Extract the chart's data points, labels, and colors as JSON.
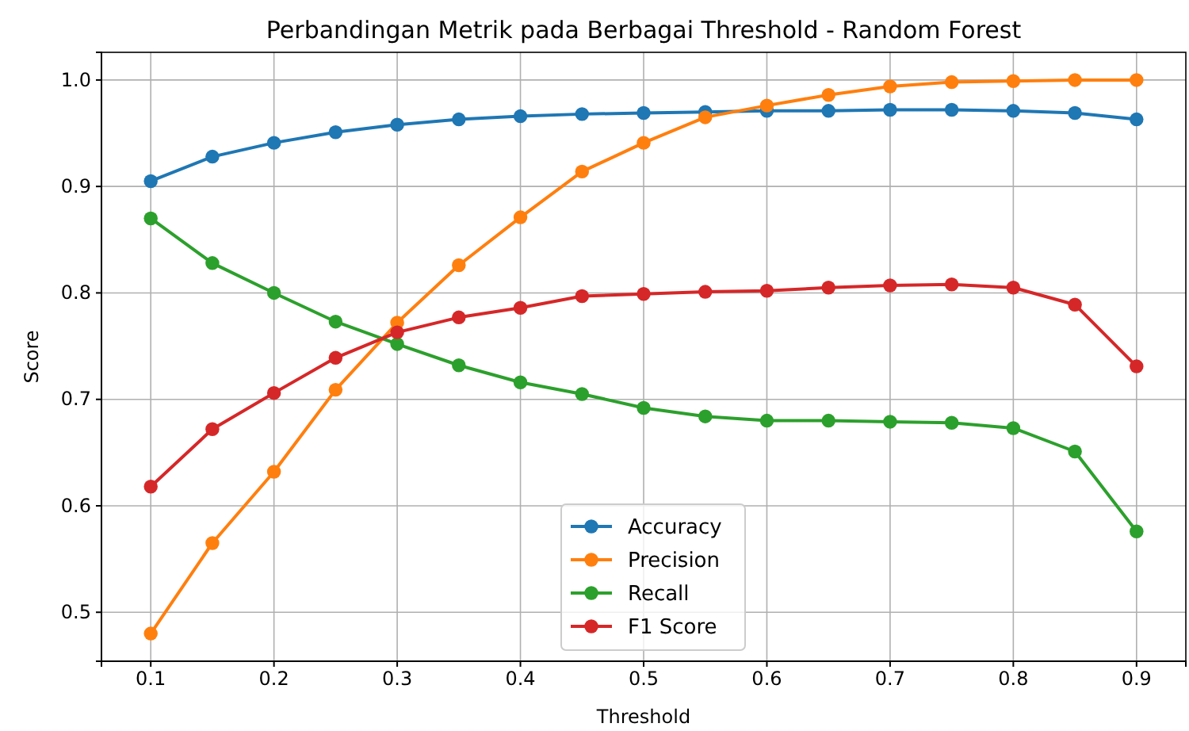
{
  "chart_data": {
    "type": "line",
    "title": "Perbandingan Metrik pada Berbagai Threshold - Random Forest",
    "xlabel": "Threshold",
    "ylabel": "Score",
    "x": [
      0.1,
      0.15,
      0.2,
      0.25,
      0.3,
      0.35,
      0.4,
      0.45,
      0.5,
      0.55,
      0.6,
      0.65,
      0.7,
      0.75,
      0.8,
      0.85,
      0.9
    ],
    "series": [
      {
        "name": "Accuracy",
        "color": "#1f77b4",
        "values": [
          0.905,
          0.928,
          0.941,
          0.951,
          0.958,
          0.963,
          0.966,
          0.968,
          0.969,
          0.97,
          0.971,
          0.971,
          0.972,
          0.972,
          0.971,
          0.969,
          0.963
        ]
      },
      {
        "name": "Precision",
        "color": "#ff7f0e",
        "values": [
          0.48,
          0.565,
          0.632,
          0.709,
          0.772,
          0.826,
          0.871,
          0.914,
          0.941,
          0.965,
          0.976,
          0.986,
          0.994,
          0.998,
          0.999,
          1.0,
          1.0
        ]
      },
      {
        "name": "Recall",
        "color": "#2ca02c",
        "values": [
          0.87,
          0.828,
          0.8,
          0.773,
          0.752,
          0.732,
          0.716,
          0.705,
          0.692,
          0.684,
          0.68,
          0.68,
          0.679,
          0.678,
          0.673,
          0.651,
          0.576
        ]
      },
      {
        "name": "F1 Score",
        "color": "#d62728",
        "values": [
          0.618,
          0.672,
          0.706,
          0.739,
          0.763,
          0.777,
          0.786,
          0.797,
          0.799,
          0.801,
          0.802,
          0.805,
          0.807,
          0.808,
          0.805,
          0.789,
          0.731
        ]
      }
    ],
    "xlim": [
      0.06,
      0.94
    ],
    "xticks": [
      0.1,
      0.2,
      0.3,
      0.4,
      0.5,
      0.6,
      0.7,
      0.8,
      0.9
    ],
    "ylim": [
      0.454,
      1.026
    ],
    "yticks": [
      0.5,
      0.6,
      0.7,
      0.8,
      0.9,
      {
        "value": 1.0,
        "label": "1.0"
      }
    ],
    "grid": true,
    "legend": "bottom",
    "marker": "circle",
    "line_style": "solid"
  }
}
